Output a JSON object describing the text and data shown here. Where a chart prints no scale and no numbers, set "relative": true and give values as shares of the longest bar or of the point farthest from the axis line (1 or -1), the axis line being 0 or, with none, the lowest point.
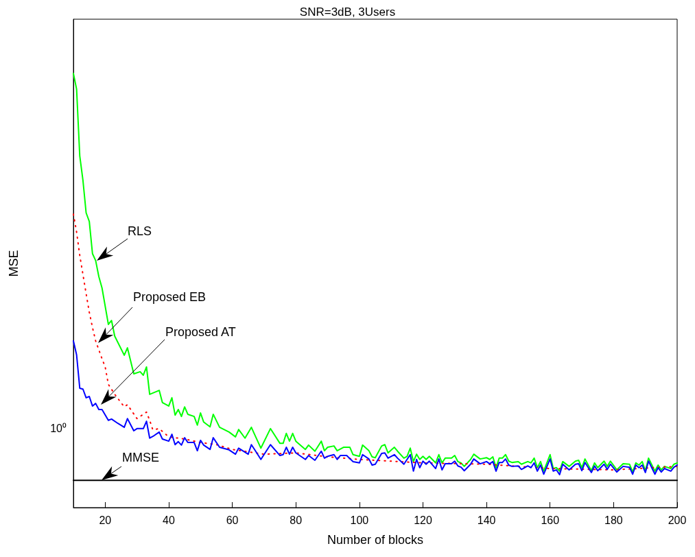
{
  "chart_data": {
    "type": "line",
    "title": "SNR=3dB, 3Users",
    "xlabel": "Number of blocks",
    "ylabel": "MSE",
    "relative": true,
    "xlim": [
      10,
      200
    ],
    "xticks": [
      20,
      40,
      60,
      80,
      100,
      120,
      140,
      160,
      180,
      200
    ],
    "grid": false,
    "marker": "none",
    "series": [
      {
        "color": "#00ff00",
        "x": [
          10,
          11,
          12,
          13,
          14,
          15,
          16,
          17,
          18,
          19,
          21,
          22,
          23,
          26,
          27,
          29,
          31,
          32,
          33,
          34,
          37,
          38,
          40,
          41,
          42,
          43,
          44,
          45,
          46,
          48,
          49,
          50,
          51,
          53,
          54,
          56,
          59,
          61,
          62,
          64,
          66,
          67,
          69,
          72,
          75,
          76,
          77,
          78,
          79,
          80,
          83,
          84,
          86,
          88,
          89,
          90,
          92,
          93,
          95,
          97,
          98,
          100,
          101,
          103,
          104,
          105,
          107,
          108,
          109,
          111,
          112,
          114,
          115,
          116,
          117,
          118,
          119,
          120,
          121,
          122,
          124,
          125,
          126,
          127,
          129,
          130,
          131,
          132,
          133,
          135,
          136,
          138,
          140,
          141,
          142,
          143,
          144,
          145,
          146,
          147,
          148,
          150,
          151,
          153,
          154,
          155,
          156,
          157,
          158,
          160,
          161,
          162,
          163,
          164,
          166,
          168,
          169,
          170,
          171,
          173,
          174,
          175,
          177,
          178,
          179,
          181,
          183,
          185,
          186,
          187,
          188,
          189,
          190,
          191,
          193,
          194,
          195,
          196,
          198,
          199,
          200
        ],
        "values": [
          1.0,
          0.964,
          0.81,
          0.754,
          0.679,
          0.659,
          0.585,
          0.569,
          0.532,
          0.506,
          0.422,
          0.431,
          0.395,
          0.351,
          0.368,
          0.308,
          0.313,
          0.305,
          0.324,
          0.261,
          0.27,
          0.242,
          0.234,
          0.253,
          0.213,
          0.226,
          0.21,
          0.232,
          0.215,
          0.21,
          0.19,
          0.218,
          0.197,
          0.186,
          0.215,
          0.185,
          0.174,
          0.163,
          0.18,
          0.16,
          0.185,
          0.169,
          0.137,
          0.182,
          0.148,
          0.148,
          0.171,
          0.153,
          0.171,
          0.153,
          0.134,
          0.144,
          0.13,
          0.153,
          0.131,
          0.139,
          0.142,
          0.131,
          0.139,
          0.139,
          0.122,
          0.118,
          0.144,
          0.131,
          0.117,
          0.115,
          0.142,
          0.145,
          0.126,
          0.139,
          0.13,
          0.114,
          0.118,
          0.137,
          0.106,
          0.123,
          0.111,
          0.118,
          0.111,
          0.118,
          0.103,
          0.122,
          0.103,
          0.114,
          0.114,
          0.12,
          0.106,
          0.103,
          0.095,
          0.111,
          0.123,
          0.112,
          0.115,
          0.111,
          0.117,
          0.092,
          0.114,
          0.114,
          0.122,
          0.107,
          0.104,
          0.106,
          0.1,
          0.106,
          0.103,
          0.114,
          0.092,
          0.106,
          0.084,
          0.122,
          0.09,
          0.092,
          0.084,
          0.106,
          0.095,
          0.107,
          0.109,
          0.092,
          0.112,
          0.085,
          0.103,
          0.092,
          0.107,
          0.095,
          0.107,
          0.087,
          0.101,
          0.1,
          0.082,
          0.103,
          0.098,
          0.106,
          0.085,
          0.114,
          0.084,
          0.098,
          0.087,
          0.095,
          0.09,
          0.1,
          0.103
        ]
      },
      {
        "color": "#ff0000",
        "line_style": "dotted",
        "x": [
          10,
          11,
          12,
          13,
          14,
          15,
          16,
          17,
          19,
          20,
          21,
          23,
          26,
          27,
          30,
          33,
          34,
          35,
          37,
          40,
          45,
          50,
          55,
          60,
          70,
          80,
          90,
          100,
          120,
          140,
          160,
          180,
          200
        ],
        "values": [
          0.676,
          0.635,
          0.581,
          0.537,
          0.493,
          0.45,
          0.415,
          0.384,
          0.343,
          0.324,
          0.284,
          0.261,
          0.232,
          0.237,
          0.205,
          0.22,
          0.201,
          0.179,
          0.182,
          0.163,
          0.158,
          0.15,
          0.145,
          0.134,
          0.123,
          0.126,
          0.117,
          0.111,
          0.103,
          0.1,
          0.09,
          0.087,
          0.095
        ]
      },
      {
        "color": "#0000ff",
        "x": [
          10,
          11,
          12,
          13,
          14,
          15,
          16,
          17,
          18,
          19,
          21,
          22,
          24,
          26,
          27,
          29,
          30,
          32,
          33,
          34,
          35,
          37,
          38,
          40,
          41,
          42,
          43,
          44,
          45,
          46,
          48,
          49,
          50,
          51,
          53,
          54,
          56,
          59,
          61,
          62,
          65,
          66,
          67,
          69,
          72,
          75,
          76,
          77,
          78,
          79,
          80,
          83,
          84,
          86,
          88,
          89,
          90,
          92,
          93,
          94,
          96,
          98,
          100,
          101,
          103,
          104,
          105,
          107,
          108,
          109,
          111,
          112,
          114,
          116,
          117,
          118,
          119,
          120,
          121,
          122,
          124,
          125,
          126,
          127,
          129,
          130,
          131,
          132,
          133,
          135,
          136,
          138,
          140,
          141,
          142,
          143,
          144,
          145,
          146,
          147,
          148,
          150,
          151,
          153,
          154,
          155,
          156,
          157,
          158,
          160,
          161,
          162,
          163,
          164,
          166,
          168,
          169,
          170,
          171,
          173,
          174,
          175,
          177,
          178,
          179,
          181,
          183,
          185,
          186,
          187,
          188,
          189,
          190,
          191,
          193,
          194,
          195,
          196,
          198,
          199,
          200
        ],
        "values": [
          0.384,
          0.352,
          0.275,
          0.273,
          0.253,
          0.256,
          0.234,
          0.24,
          0.226,
          0.226,
          0.201,
          0.204,
          0.194,
          0.185,
          0.205,
          0.177,
          0.182,
          0.182,
          0.199,
          0.16,
          0.164,
          0.174,
          0.158,
          0.153,
          0.169,
          0.145,
          0.152,
          0.144,
          0.161,
          0.15,
          0.15,
          0.131,
          0.155,
          0.144,
          0.134,
          0.161,
          0.139,
          0.133,
          0.123,
          0.137,
          0.123,
          0.145,
          0.134,
          0.111,
          0.145,
          0.12,
          0.122,
          0.139,
          0.123,
          0.139,
          0.126,
          0.111,
          0.12,
          0.109,
          0.13,
          0.114,
          0.118,
          0.122,
          0.111,
          0.12,
          0.12,
          0.106,
          0.103,
          0.122,
          0.112,
          0.098,
          0.1,
          0.125,
          0.126,
          0.114,
          0.122,
          0.114,
          0.1,
          0.122,
          0.084,
          0.111,
          0.092,
          0.107,
          0.1,
          0.107,
          0.09,
          0.112,
          0.087,
          0.101,
          0.101,
          0.107,
          0.096,
          0.093,
          0.085,
          0.1,
          0.112,
          0.101,
          0.106,
          0.101,
          0.106,
          0.084,
          0.104,
          0.104,
          0.112,
          0.098,
          0.095,
          0.096,
          0.088,
          0.096,
          0.092,
          0.103,
          0.084,
          0.098,
          0.077,
          0.112,
          0.084,
          0.087,
          0.076,
          0.1,
          0.087,
          0.1,
          0.101,
          0.085,
          0.104,
          0.081,
          0.096,
          0.085,
          0.1,
          0.088,
          0.1,
          0.082,
          0.095,
          0.093,
          0.077,
          0.098,
          0.092,
          0.098,
          0.081,
          0.107,
          0.077,
          0.092,
          0.082,
          0.09,
          0.084,
          0.093,
          0.098
        ]
      },
      {
        "color": "#000000",
        "x": [
          10,
          200
        ],
        "values": [
          0.063,
          0.063
        ]
      }
    ],
    "annotations": [
      "RLS",
      "Proposed EB",
      "Proposed AT",
      "MMSE",
      "10⁰"
    ]
  }
}
